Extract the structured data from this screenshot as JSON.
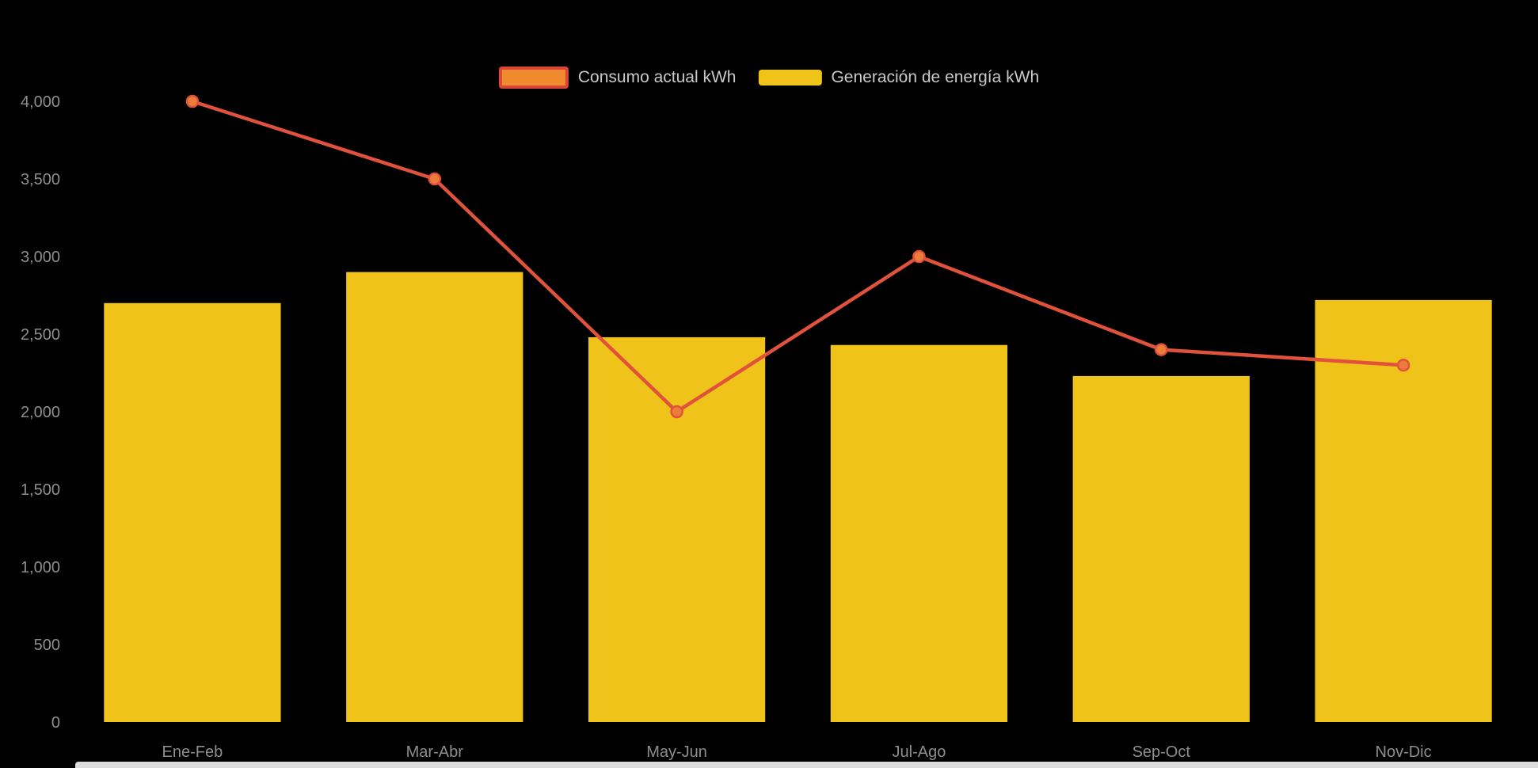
{
  "page": {
    "background": "#000000"
  },
  "chart_data": {
    "type": "bar",
    "subtype": "bar-and-line-combo",
    "title": "",
    "categories": [
      "Ene-Feb",
      "Mar-Abr",
      "May-Jun",
      "Jul-Ago",
      "Sep-Oct",
      "Nov-Dic"
    ],
    "series": [
      {
        "name": "Consumo actual kWh",
        "type": "line",
        "color": "#E0523C",
        "marker_fill": "#ED7C3A",
        "values": [
          4000,
          3500,
          2000,
          3000,
          2400,
          2300
        ]
      },
      {
        "name": "Generación de energía kWh",
        "type": "bar",
        "color": "#EFC319",
        "values": [
          2700,
          2900,
          2480,
          2430,
          2230,
          2720
        ]
      }
    ],
    "ylim": [
      0,
      4000
    ],
    "ytick_step": 500,
    "yticks": [
      "0",
      "500",
      "1,000",
      "1,500",
      "2,000",
      "2,500",
      "3,000",
      "3,500",
      "4,000"
    ],
    "grid": false,
    "legend_position": "top-center",
    "xlabel": "",
    "ylabel": "",
    "axis_text_color": "#8E8E8E",
    "legend_text_color": "#C9C9C9"
  },
  "legend": {
    "consumo_swatch_fill": "#EF8A2E",
    "consumo_swatch_border": "#DC4437",
    "generacion_swatch_fill": "#EFC319"
  },
  "bottom_strip": {
    "color": "#DCDCDC"
  }
}
